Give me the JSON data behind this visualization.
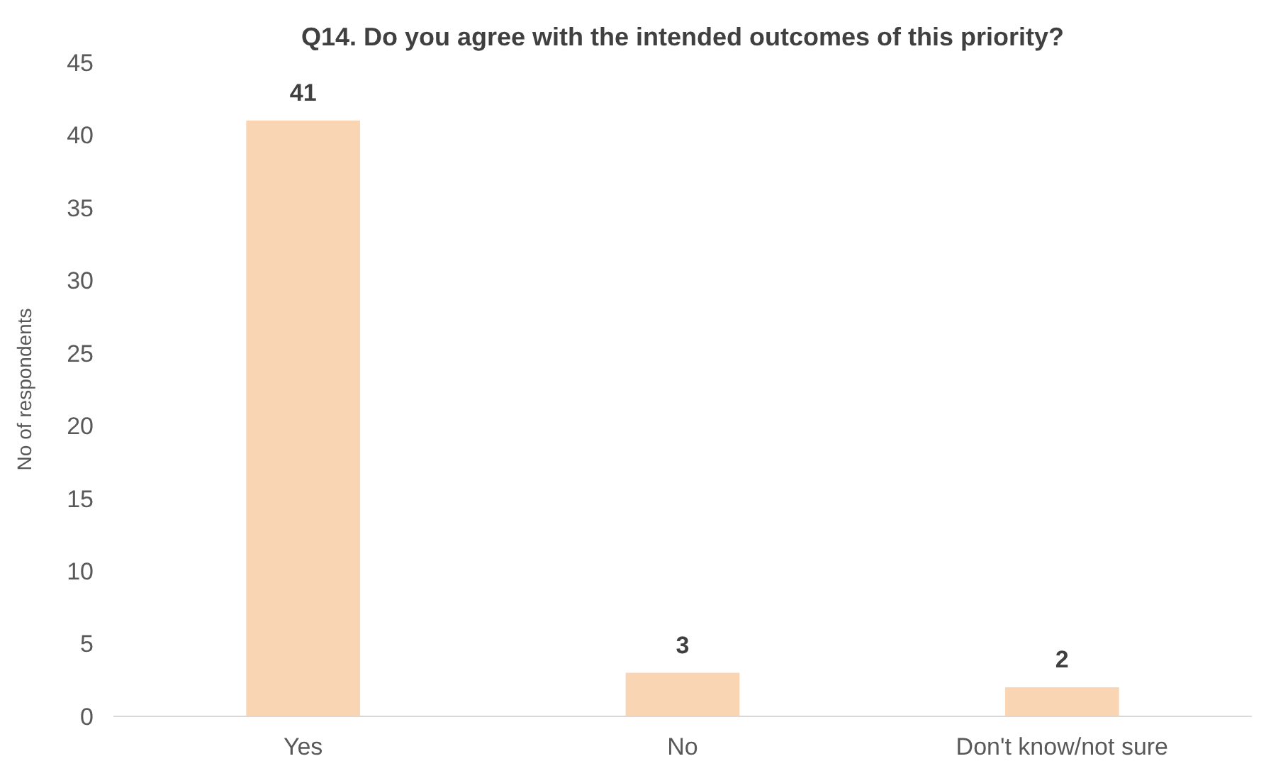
{
  "chart_data": {
    "type": "bar",
    "title": "Q14. Do you agree with the intended outcomes of this priority?",
    "ylabel": "No of respondents",
    "categories": [
      "Yes",
      "No",
      "Don't know/not sure"
    ],
    "values": [
      41,
      3,
      2
    ],
    "color": "#f9d5b4",
    "ylim": [
      0,
      45
    ],
    "yticks": [
      0,
      5,
      10,
      15,
      20,
      25,
      30,
      35,
      40,
      45
    ],
    "grid": false,
    "data_labels": true
  }
}
